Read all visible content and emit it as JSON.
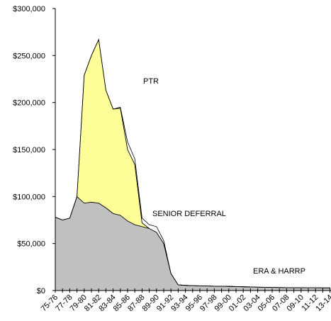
{
  "chart_data": {
    "type": "stacked_area",
    "categories": [
      "75-76",
      null,
      "77-78",
      null,
      "79-80",
      null,
      "81-82",
      null,
      "83-84",
      null,
      "85-86",
      null,
      "87-88",
      null,
      "89-90",
      null,
      "91-92",
      null,
      "93-94",
      null,
      "95-96",
      null,
      "97-98",
      null,
      "99-00",
      null,
      "01-02",
      null,
      "03-04",
      null,
      "05-06",
      null,
      "07-08",
      null,
      "09-10",
      null,
      "11-12",
      null,
      "13-14"
    ],
    "series": [
      {
        "name": "ERA & HARRP",
        "color": "#c0c0c0",
        "values": [
          78000,
          75000,
          77000,
          100000,
          93000,
          94000,
          93000,
          88000,
          82000,
          80000,
          74000,
          70000,
          68000,
          66000,
          62000,
          50000,
          18000,
          6000,
          5500,
          5200,
          5000,
          4800,
          4600,
          4500,
          4400,
          4200,
          4000,
          3800,
          3600,
          3500,
          3300,
          3200,
          3100,
          3000,
          3000,
          2900,
          2900,
          2800,
          2800
        ]
      },
      {
        "name": "PTR",
        "color": "#ffff99",
        "values": [
          0,
          0,
          0,
          0,
          136000,
          156000,
          174000,
          125000,
          111000,
          114000,
          76000,
          64000,
          4000,
          0,
          0,
          0,
          0,
          0,
          0,
          0,
          0,
          0,
          0,
          0,
          0,
          0,
          0,
          0,
          0,
          0,
          0,
          0,
          0,
          0,
          0,
          0,
          0,
          0,
          0
        ]
      },
      {
        "name": "SENIOR DEFERRAL",
        "color": "#ffffff",
        "values": [
          0,
          0,
          0,
          0,
          0,
          0,
          0,
          0,
          0,
          1000,
          8000,
          6000,
          5000,
          4000,
          6000,
          3000,
          0,
          0,
          0,
          0,
          0,
          0,
          0,
          0,
          0,
          0,
          0,
          0,
          0,
          0,
          0,
          0,
          0,
          0,
          0,
          0,
          0,
          0,
          0
        ]
      }
    ],
    "ylim": [
      0,
      300000
    ],
    "yticks": [
      {
        "value": 0,
        "label": "$0"
      },
      {
        "value": 50000,
        "label": "$50,000"
      },
      {
        "value": 100000,
        "label": "$100,000"
      },
      {
        "value": 150000,
        "label": "$150,000"
      },
      {
        "value": 200000,
        "label": "$200,000"
      },
      {
        "value": 250000,
        "label": "$250,000"
      },
      {
        "value": 300000,
        "label": "$300,000"
      }
    ]
  }
}
